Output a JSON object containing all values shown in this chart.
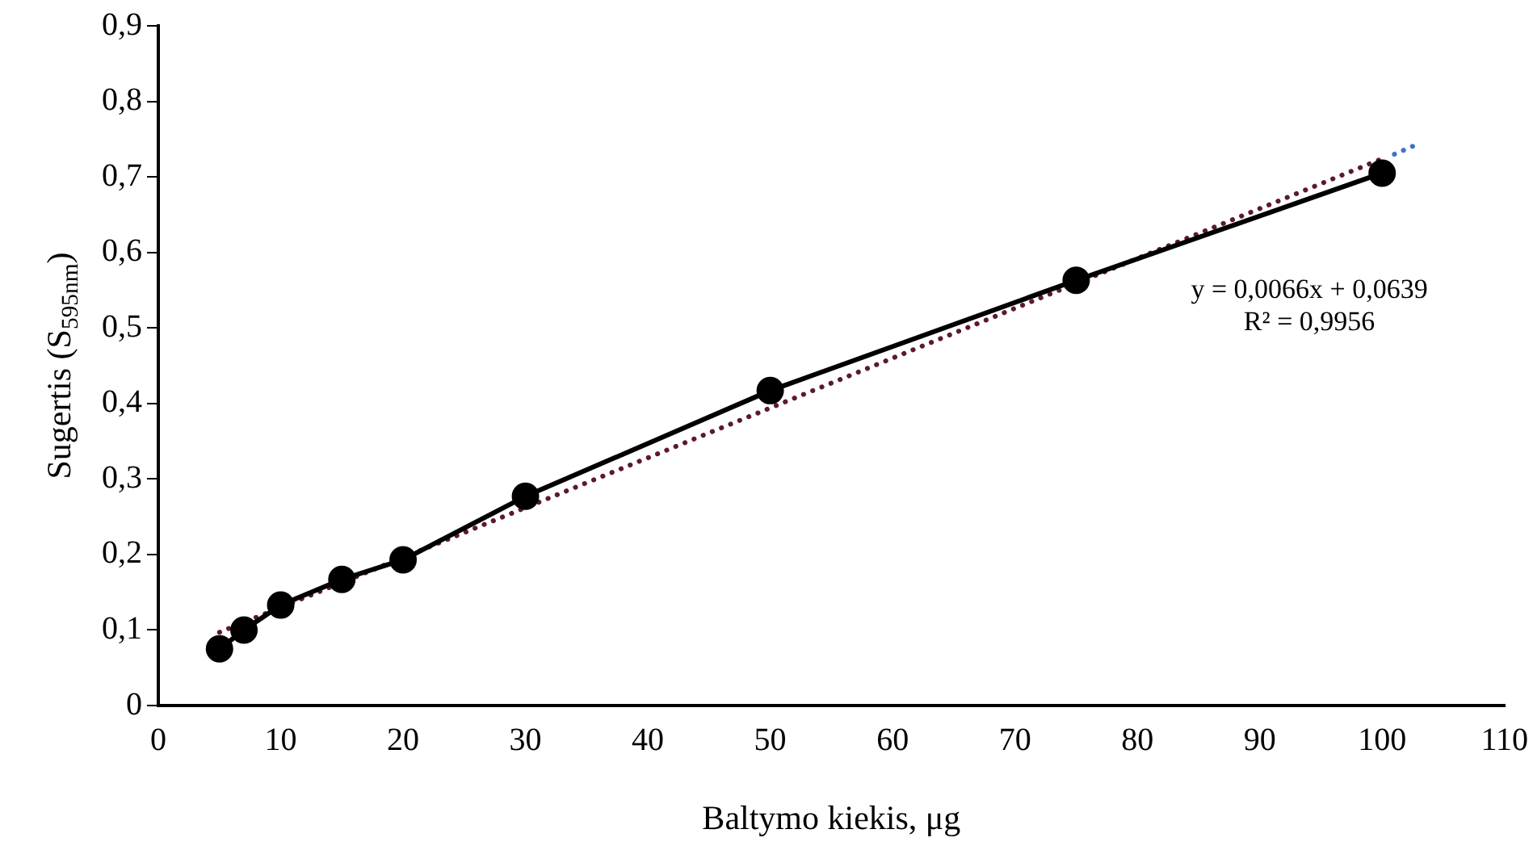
{
  "chart_data": {
    "type": "line",
    "xlabel": "Baltymo kiekis, μg",
    "ylabel": "Sugertis (S$_{595nm}$)",
    "x": [
      5,
      7,
      10,
      15,
      20,
      30,
      50,
      75,
      100
    ],
    "series": [
      {
        "color": "#000000",
        "values": [
          0.075,
          0.1,
          0.133,
          0.167,
          0.193,
          0.277,
          0.417,
          0.563,
          0.705
        ],
        "marker": "circle",
        "line_style": "solid"
      },
      {
        "type": "line",
        "color": "#5b1a2a",
        "x": [
          5,
          100
        ],
        "values": [
          0.097,
          0.724
        ],
        "marker": "none",
        "line_style": "dotted"
      },
      {
        "type": "line",
        "color": "#4472c4",
        "x": [
          101,
          103
        ],
        "values": [
          0.73,
          0.744
        ],
        "marker": "none",
        "line_style": "dotted"
      }
    ],
    "xlim": [
      0,
      110
    ],
    "xticks": [
      0,
      10,
      20,
      30,
      40,
      50,
      60,
      70,
      80,
      90,
      100,
      110
    ],
    "ylim": [
      0,
      0.9
    ],
    "yticks": [
      0,
      {
        "value": 0.1,
        "label": "0,1"
      },
      {
        "value": 0.2,
        "label": "0,2"
      },
      {
        "value": 0.3,
        "label": "0,3"
      },
      {
        "value": 0.4,
        "label": "0,4"
      },
      {
        "value": 0.5,
        "label": "0,5"
      },
      {
        "value": 0.6,
        "label": "0,6"
      },
      {
        "value": 0.7,
        "label": "0,7"
      },
      {
        "value": 0.8,
        "label": "0,8"
      },
      {
        "value": 0.9,
        "label": "0,9"
      }
    ],
    "annotations": [
      "y = 0,0066x + 0,0639",
      "R² = 0,9956"
    ],
    "grid": false,
    "legend": false
  }
}
